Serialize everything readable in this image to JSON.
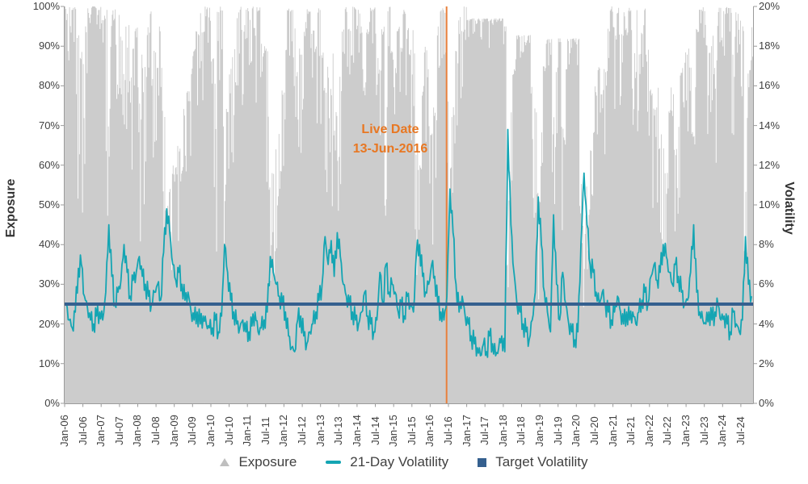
{
  "chart_data": {
    "type": "combo-area-line",
    "title": "",
    "xlabel": "",
    "ylabel_left": "Exposure",
    "ylabel_right": "Volatility",
    "axis_left": {
      "min": 0,
      "max": 100,
      "tick_labels": [
        "0%",
        "10%",
        "20%",
        "30%",
        "40%",
        "50%",
        "60%",
        "70%",
        "80%",
        "90%",
        "100%"
      ]
    },
    "axis_right": {
      "min": 0,
      "max": 20,
      "tick_labels": [
        "0%",
        "2%",
        "4%",
        "6%",
        "8%",
        "10%",
        "12%",
        "14%",
        "16%",
        "18%",
        "20%"
      ]
    },
    "x_tick_labels": [
      "Jan-06",
      "Jul-06",
      "Jan-07",
      "Jul-07",
      "Jan-08",
      "Jul-08",
      "Jan-09",
      "Jul-09",
      "Jan-10",
      "Jul-10",
      "Jan-11",
      "Jul-11",
      "Jan-12",
      "Jul-12",
      "Jan-13",
      "Jul-13",
      "Jan-14",
      "Jul-14",
      "Jan-15",
      "Jul-15",
      "Jan-16",
      "Jul-16",
      "Jan-17",
      "Jul-17",
      "Jan-18",
      "Jul-18",
      "Jan-19",
      "Jul-19",
      "Jan-20",
      "Jul-20",
      "Jan-21",
      "Jul-21",
      "Jan-22",
      "Jul-22",
      "Jan-23",
      "Jul-23",
      "Jan-24",
      "Jul-24"
    ],
    "x_months_per_tick": 6,
    "grid": false,
    "legend_position": "bottom",
    "series": [
      {
        "name": "Exposure",
        "type": "area-bars",
        "axis": "left",
        "color": "#cccccc",
        "monthly_high": [
          100,
          100,
          100,
          100,
          95,
          90,
          95,
          100,
          100,
          100,
          100,
          100,
          100,
          100,
          90,
          100,
          100,
          100,
          95,
          85,
          95,
          100,
          90,
          95,
          80,
          90,
          85,
          95,
          100,
          90,
          85,
          95,
          75,
          50,
          55,
          60,
          60,
          65,
          60,
          75,
          80,
          85,
          90,
          95,
          100,
          95,
          100,
          100,
          90,
          85,
          100,
          100,
          70,
          75,
          85,
          90,
          100,
          100,
          95,
          100,
          100,
          100,
          95,
          100,
          100,
          90,
          90,
          55,
          60,
          65,
          75,
          80,
          90,
          100,
          100,
          95,
          85,
          90,
          95,
          100,
          100,
          95,
          90,
          100,
          90,
          80,
          85,
          80,
          90,
          75,
          85,
          95,
          100,
          95,
          100,
          100,
          100,
          95,
          90,
          95,
          100,
          100,
          95,
          85,
          95,
          75,
          100,
          90,
          85,
          95,
          90,
          100,
          95,
          90,
          95,
          65,
          60,
          80,
          90,
          85,
          70,
          75,
          95,
          100,
          100,
          90,
          60,
          75,
          90,
          100,
          95,
          100,
          97,
          97,
          97,
          97,
          97,
          97,
          97,
          97,
          97,
          97,
          97,
          97,
          95,
          60,
          75,
          85,
          93,
          93,
          93,
          93,
          93,
          80,
          75,
          55,
          70,
          85,
          92,
          92,
          75,
          85,
          92,
          70,
          85,
          92,
          92,
          92,
          92,
          75,
          45,
          55,
          65,
          70,
          80,
          85,
          80,
          85,
          95,
          100,
          95,
          100,
          95,
          100,
          95,
          100,
          95,
          100,
          90,
          95,
          100,
          90,
          80,
          75,
          80,
          70,
          65,
          60,
          75,
          80,
          65,
          70,
          85,
          90,
          90,
          85,
          70,
          95,
          100,
          100,
          100,
          90,
          95,
          85,
          100,
          100,
          100,
          100,
          100,
          90,
          100,
          100,
          95,
          55,
          85,
          95
        ],
        "monthly_low": [
          70,
          85,
          90,
          75,
          45,
          40,
          60,
          80,
          95,
          100,
          95,
          90,
          85,
          55,
          45,
          70,
          80,
          70,
          50,
          45,
          65,
          75,
          55,
          60,
          40,
          55,
          50,
          70,
          80,
          60,
          50,
          70,
          35,
          20,
          25,
          30,
          35,
          40,
          35,
          50,
          55,
          60,
          65,
          75,
          80,
          75,
          85,
          90,
          40,
          35,
          75,
          80,
          35,
          40,
          55,
          60,
          80,
          85,
          70,
          90,
          85,
          80,
          65,
          85,
          75,
          60,
          55,
          25,
          30,
          35,
          45,
          50,
          65,
          80,
          85,
          70,
          55,
          60,
          70,
          80,
          85,
          75,
          65,
          80,
          60,
          45,
          50,
          45,
          60,
          40,
          55,
          70,
          80,
          75,
          85,
          90,
          80,
          70,
          65,
          75,
          85,
          90,
          75,
          55,
          70,
          40,
          85,
          65,
          60,
          75,
          65,
          80,
          75,
          65,
          70,
          30,
          35,
          55,
          65,
          55,
          40,
          45,
          70,
          85,
          80,
          60,
          35,
          45,
          65,
          85,
          75,
          90,
          90,
          95,
          92,
          95,
          90,
          95,
          95,
          88,
          95,
          96,
          96,
          96,
          90,
          25,
          45,
          60,
          80,
          85,
          88,
          90,
          88,
          50,
          45,
          25,
          40,
          60,
          75,
          85,
          45,
          60,
          80,
          40,
          65,
          80,
          88,
          90,
          85,
          40,
          20,
          30,
          40,
          45,
          55,
          65,
          55,
          60,
          75,
          85,
          70,
          80,
          70,
          85,
          70,
          85,
          70,
          80,
          60,
          75,
          85,
          65,
          50,
          45,
          50,
          40,
          35,
          35,
          50,
          55,
          40,
          45,
          60,
          70,
          65,
          60,
          40,
          75,
          85,
          90,
          85,
          65,
          70,
          60,
          85,
          90,
          85,
          90,
          90,
          65,
          85,
          90,
          70,
          30,
          60,
          75
        ]
      },
      {
        "name": "21-Day Volatility",
        "type": "line",
        "axis": "right",
        "color": "#14a5b3",
        "monthly_values": [
          5.0,
          4.2,
          3.8,
          4.6,
          6.8,
          7.0,
          5.4,
          4.8,
          4.2,
          4.0,
          4.4,
          4.6,
          4.2,
          5.6,
          9.0,
          6.4,
          5.0,
          5.6,
          6.2,
          8.0,
          6.6,
          5.4,
          6.2,
          6.6,
          7.4,
          6.4,
          6.0,
          5.4,
          5.0,
          5.6,
          6.0,
          5.2,
          7.6,
          9.8,
          8.6,
          7.0,
          6.2,
          6.6,
          6.0,
          5.2,
          5.6,
          4.6,
          4.2,
          4.6,
          4.0,
          4.4,
          4.0,
          3.8,
          3.8,
          4.2,
          3.6,
          4.4,
          8.0,
          6.6,
          5.2,
          4.6,
          4.0,
          3.8,
          4.2,
          3.6,
          3.6,
          3.9,
          4.6,
          3.6,
          3.8,
          4.2,
          4.6,
          7.4,
          6.6,
          6.0,
          5.4,
          5.0,
          4.6,
          3.4,
          2.8,
          2.6,
          4.2,
          4.4,
          3.4,
          3.0,
          3.6,
          4.0,
          4.6,
          5.2,
          6.0,
          8.4,
          7.0,
          8.2,
          6.4,
          8.6,
          7.4,
          6.0,
          5.4,
          5.0,
          4.6,
          4.2,
          4.0,
          4.6,
          5.6,
          4.4,
          4.0,
          3.6,
          4.2,
          6.6,
          5.0,
          7.0,
          5.6,
          6.0,
          5.6,
          4.6,
          5.0,
          4.4,
          5.4,
          5.0,
          4.6,
          7.6,
          8.0,
          6.4,
          5.6,
          6.0,
          7.0,
          6.4,
          5.0,
          4.6,
          4.2,
          5.4,
          10.8,
          8.6,
          6.0,
          4.6,
          5.4,
          4.4,
          4.0,
          3.4,
          3.0,
          2.8,
          2.4,
          3.0,
          2.6,
          3.4,
          3.0,
          2.4,
          2.8,
          3.4,
          2.6,
          13.8,
          9.0,
          6.6,
          5.0,
          4.6,
          4.0,
          3.6,
          3.2,
          4.2,
          5.6,
          10.4,
          8.0,
          5.6,
          4.6,
          3.6,
          9.5,
          6.0,
          4.2,
          6.6,
          5.0,
          4.0,
          3.6,
          3.2,
          3.6,
          8.0,
          11.6,
          9.0,
          7.0,
          6.6,
          5.6,
          5.0,
          5.6,
          5.0,
          4.6,
          4.2,
          4.6,
          5.4,
          4.6,
          4.0,
          4.6,
          4.2,
          4.6,
          4.0,
          4.6,
          5.2,
          5.6,
          5.0,
          6.4,
          7.0,
          6.2,
          6.6,
          8.0,
          7.4,
          6.6,
          6.0,
          7.0,
          6.4,
          5.6,
          5.0,
          5.2,
          6.6,
          9.0,
          5.6,
          4.6,
          4.2,
          4.0,
          4.6,
          4.2,
          4.6,
          5.0,
          4.2,
          4.4,
          4.0,
          3.6,
          4.6,
          4.0,
          3.6,
          4.2,
          8.4,
          6.0,
          5.4
        ]
      },
      {
        "name": "Target Volatility",
        "type": "hline",
        "axis": "right",
        "color": "#35608f",
        "value": 5
      }
    ],
    "annotation": {
      "line1": "Live Date",
      "line2": "13-Jun-2016",
      "color": "#e87722",
      "line_color": "#e8803c",
      "month_index": 125.4
    },
    "legend": [
      {
        "label": "Exposure",
        "marker": "triangle",
        "color": "#bfbfbf"
      },
      {
        "label": "21-Day Volatility",
        "marker": "line",
        "color": "#14a5b3"
      },
      {
        "label": "Target Volatility",
        "marker": "square",
        "color": "#35608f"
      }
    ],
    "axis_color": "#9b9b9b",
    "tick_label_color": "#404040"
  }
}
